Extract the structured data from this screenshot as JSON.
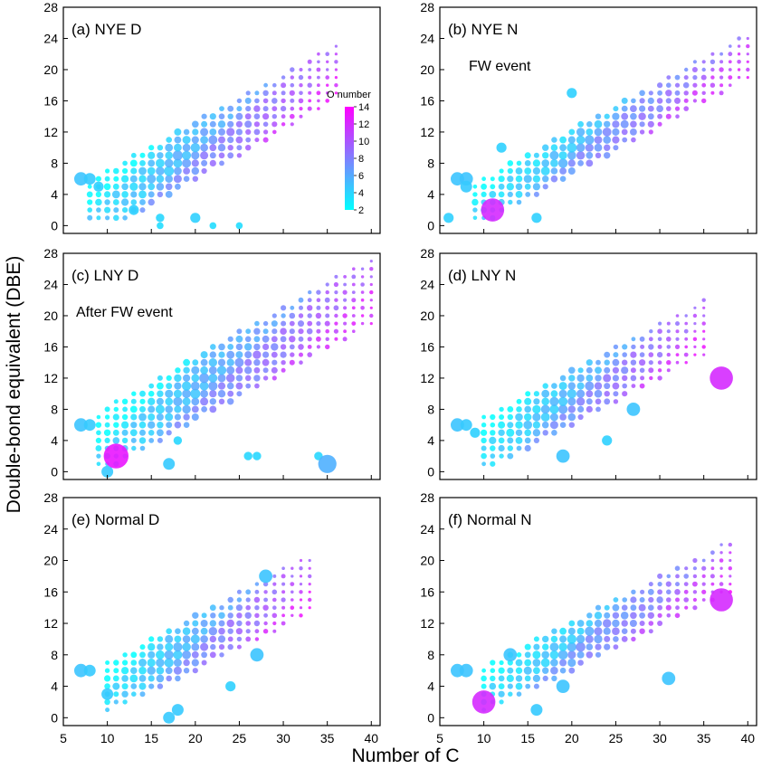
{
  "figure": {
    "ylabel": "Double-bond equivalent (DBE)",
    "xlabel": "Number of C"
  },
  "colorbar": {
    "title": "O number",
    "ticks": [
      "14",
      "12",
      "10",
      "8",
      "6",
      "4",
      "2"
    ],
    "gradient": [
      "#ff00ff",
      "#cc33ff",
      "#9966ff",
      "#6699ff",
      "#33ccff",
      "#00ffff"
    ]
  },
  "chart_data": [
    {
      "type": "scatter",
      "title": "(a) NYE D",
      "annotation": "",
      "xticks": [
        "5",
        "10",
        "15",
        "20",
        "25",
        "30",
        "35",
        "40"
      ],
      "yticks": [
        "0",
        "4",
        "8",
        "12",
        "16",
        "20",
        "24",
        "28"
      ],
      "xlim": [
        5,
        41
      ],
      "ylim": [
        -1,
        28
      ],
      "has_colorbar": true,
      "band": {
        "start_c": 8,
        "end_c": 36,
        "low_a": -7,
        "low_b": 0.64,
        "high_a": 1,
        "high_b": 0.62,
        "dbe_min": 1
      },
      "special": [
        [
          7,
          6,
          6
        ],
        [
          8,
          6,
          5
        ],
        [
          13,
          2,
          4
        ],
        [
          16,
          1,
          3
        ],
        [
          20,
          1,
          4
        ],
        [
          16,
          0,
          2
        ],
        [
          22,
          0,
          2
        ],
        [
          25,
          0,
          2
        ],
        [
          9,
          5,
          4
        ]
      ]
    },
    {
      "type": "scatter",
      "title": "(b) NYE N",
      "annotation": "FW event",
      "xticks": [
        "5",
        "10",
        "15",
        "20",
        "25",
        "30",
        "35",
        "40"
      ],
      "yticks": [
        "0",
        "4",
        "8",
        "12",
        "16",
        "20",
        "24",
        "28"
      ],
      "xlim": [
        5,
        41
      ],
      "ylim": [
        -1,
        28
      ],
      "has_colorbar": false,
      "band": {
        "start_c": 9,
        "end_c": 40,
        "low_a": -6,
        "low_b": 0.62,
        "high_a": 0,
        "high_b": 0.62,
        "dbe_min": 1
      },
      "special": [
        [
          7,
          6,
          6
        ],
        [
          8,
          6,
          6
        ],
        [
          8,
          5,
          5
        ],
        [
          6,
          1,
          4
        ],
        [
          16,
          1,
          4
        ],
        [
          11,
          2,
          12
        ],
        [
          20,
          17,
          4
        ],
        [
          12,
          10,
          4
        ]
      ]
    },
    {
      "type": "scatter",
      "title": "(c) LNY D",
      "annotation": "After FW event",
      "xticks": [
        "5",
        "10",
        "15",
        "20",
        "25",
        "30",
        "35",
        "40"
      ],
      "yticks": [
        "0",
        "4",
        "8",
        "12",
        "16",
        "20",
        "24",
        "28"
      ],
      "xlim": [
        5,
        41
      ],
      "ylim": [
        -1,
        28
      ],
      "has_colorbar": false,
      "band": {
        "start_c": 9,
        "end_c": 40,
        "low_a": -6,
        "low_b": 0.62,
        "high_a": 2,
        "high_b": 0.64,
        "dbe_min": 1
      },
      "special": [
        [
          7,
          6,
          6
        ],
        [
          8,
          6,
          5
        ],
        [
          10,
          0,
          5
        ],
        [
          17,
          1,
          5
        ],
        [
          26,
          2,
          3
        ],
        [
          27,
          2,
          3
        ],
        [
          34,
          2,
          3
        ],
        [
          35,
          1,
          9
        ],
        [
          18,
          4,
          3
        ],
        [
          11,
          2,
          13
        ]
      ]
    },
    {
      "type": "scatter",
      "title": "(d) LNY N",
      "annotation": "",
      "xticks": [
        "5",
        "10",
        "15",
        "20",
        "25",
        "30",
        "35",
        "40"
      ],
      "yticks": [
        "0",
        "4",
        "8",
        "12",
        "16",
        "20",
        "24",
        "28"
      ],
      "xlim": [
        5,
        41
      ],
      "ylim": [
        -1,
        28
      ],
      "has_colorbar": false,
      "band": {
        "start_c": 10,
        "end_c": 35,
        "low_a": -6,
        "low_b": 0.6,
        "high_a": 1,
        "high_b": 0.6,
        "dbe_min": 1
      },
      "special": [
        [
          7,
          6,
          6
        ],
        [
          8,
          6,
          5
        ],
        [
          24,
          4,
          4
        ],
        [
          27,
          8,
          6
        ],
        [
          19,
          2,
          6
        ],
        [
          37,
          12,
          12
        ],
        [
          9,
          5,
          4
        ]
      ]
    },
    {
      "type": "scatter",
      "title": "(e) Normal D",
      "annotation": "",
      "xticks": [
        "5",
        "10",
        "15",
        "20",
        "25",
        "30",
        "35",
        "40"
      ],
      "yticks": [
        "0",
        "4",
        "8",
        "12",
        "16",
        "20",
        "24",
        "28"
      ],
      "xlim": [
        5,
        41
      ],
      "ylim": [
        -1,
        28
      ],
      "has_colorbar": false,
      "band": {
        "start_c": 10,
        "end_c": 33,
        "low_a": -5,
        "low_b": 0.55,
        "high_a": 1,
        "high_b": 0.6,
        "dbe_min": 1
      },
      "special": [
        [
          7,
          6,
          6
        ],
        [
          8,
          6,
          5
        ],
        [
          17,
          0,
          5
        ],
        [
          18,
          1,
          5
        ],
        [
          24,
          4,
          4
        ],
        [
          10,
          3,
          5
        ],
        [
          27,
          8,
          6
        ],
        [
          28,
          18,
          6
        ]
      ]
    },
    {
      "type": "scatter",
      "title": "(f) Normal N",
      "annotation": "",
      "xticks": [
        "5",
        "10",
        "15",
        "20",
        "25",
        "30",
        "35",
        "40"
      ],
      "yticks": [
        "0",
        "4",
        "8",
        "12",
        "16",
        "20",
        "24",
        "28"
      ],
      "xlim": [
        5,
        41
      ],
      "ylim": [
        -1,
        28
      ],
      "has_colorbar": false,
      "band": {
        "start_c": 10,
        "end_c": 38,
        "low_a": -5,
        "low_b": 0.55,
        "high_a": 1,
        "high_b": 0.57,
        "dbe_min": 1
      },
      "special": [
        [
          7,
          6,
          6
        ],
        [
          8,
          6,
          6
        ],
        [
          16,
          1,
          5
        ],
        [
          19,
          4,
          6
        ],
        [
          13,
          8,
          6
        ],
        [
          37,
          15,
          12
        ],
        [
          10,
          2,
          12
        ],
        [
          31,
          5,
          6
        ]
      ]
    }
  ]
}
